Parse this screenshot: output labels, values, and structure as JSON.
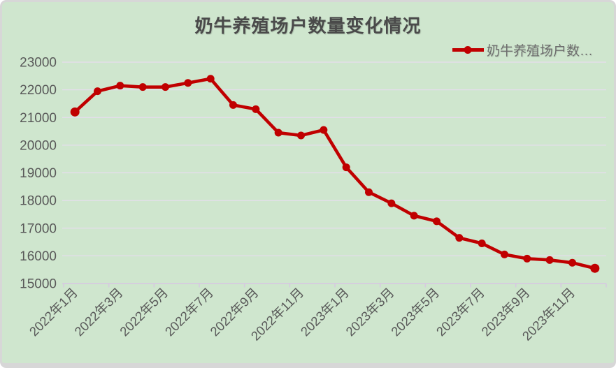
{
  "chart_data": {
    "type": "line",
    "title": "奶牛养殖场户数量变化情况",
    "legend_position": "top-right",
    "grid": true,
    "ylim": [
      15000,
      23000
    ],
    "y_step": 1000,
    "y_tick_labels": [
      "15000",
      "16000",
      "17000",
      "18000",
      "19000",
      "20000",
      "21000",
      "22000",
      "23000"
    ],
    "categories": [
      "2022年1月",
      "2022年2月",
      "2022年3月",
      "2022年4月",
      "2022年5月",
      "2022年6月",
      "2022年7月",
      "2022年8月",
      "2022年9月",
      "2022年10月",
      "2022年11月",
      "2022年12月",
      "2023年1月",
      "2023年2月",
      "2023年3月",
      "2023年4月",
      "2023年5月",
      "2023年6月",
      "2023年7月",
      "2023年8月",
      "2023年9月",
      "2023年10月",
      "2023年11月",
      "2023年12月"
    ],
    "x_tick_labels": [
      "2022年1月",
      "2022年3月",
      "2022年5月",
      "2022年7月",
      "2022年9月",
      "2022年11月",
      "2023年1月",
      "2023年3月",
      "2023年5月",
      "2023年7月",
      "2023年9月",
      "2023年11月"
    ],
    "series": [
      {
        "name": "奶牛养殖场户数…",
        "color": "#c00000",
        "values": [
          21200,
          21950,
          22150,
          22100,
          22100,
          22250,
          22400,
          21450,
          21300,
          20450,
          20350,
          20550,
          19200,
          18300,
          17900,
          17450,
          17250,
          16650,
          16450,
          16050,
          15900,
          15850,
          15750,
          15550
        ]
      }
    ],
    "style": {
      "background_color": "#cfe6ce",
      "grid_color": "#e6ddee",
      "axis_color": "#d6cadf",
      "text_color": "#595959",
      "title_color": "#4a4a4a",
      "legend_text_color": "#6e6e6e"
    }
  }
}
